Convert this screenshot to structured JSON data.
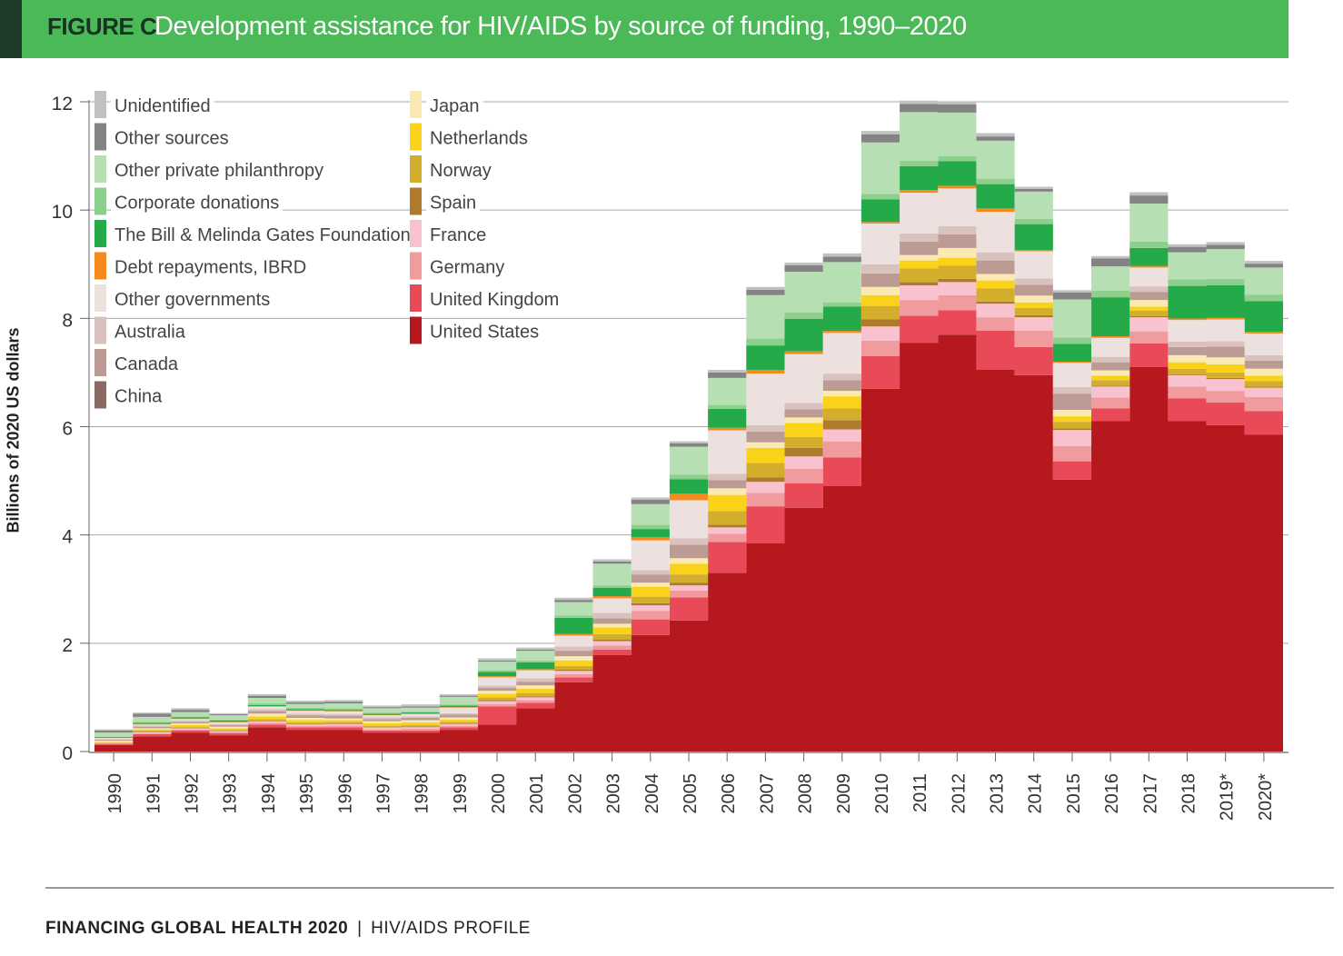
{
  "header": {
    "figure_label": "FIGURE C",
    "title": "Development assistance for HIV/AIDS by source of funding, 1990–2020"
  },
  "footer": {
    "publication": "FINANCING GLOBAL HEALTH 2020",
    "separator": "|",
    "section": "HIV/AIDS PROFILE"
  },
  "chart_data": {
    "type": "area",
    "subtype": "stacked-step",
    "title": "Development assistance for HIV/AIDS by source of funding, 1990–2020",
    "xlabel": "",
    "ylabel": "Billions of 2020 US dollars",
    "ylim": [
      0,
      12
    ],
    "yticks": [
      0,
      2,
      4,
      6,
      8,
      10,
      12
    ],
    "grid": true,
    "legend_position": "top-left",
    "categories": [
      "1990",
      "1991",
      "1992",
      "1993",
      "1994",
      "1995",
      "1996",
      "1997",
      "1998",
      "1999",
      "2000",
      "2001",
      "2002",
      "2003",
      "2004",
      "2005",
      "2006",
      "2007",
      "2008",
      "2009",
      "2010",
      "2011",
      "2012",
      "2013",
      "2014",
      "2015",
      "2016",
      "2017",
      "2018",
      "2019*",
      "2020*"
    ],
    "series": [
      {
        "name": "United States",
        "color": "#b5191d",
        "values": [
          0.12,
          0.28,
          0.35,
          0.3,
          0.45,
          0.4,
          0.4,
          0.35,
          0.35,
          0.4,
          0.5,
          0.8,
          1.28,
          1.78,
          2.15,
          2.42,
          3.3,
          3.85,
          4.5,
          4.9,
          6.7,
          7.55,
          7.7,
          7.05,
          6.95,
          5.02,
          6.1,
          7.1,
          6.1,
          6.03,
          5.85
        ]
      },
      {
        "name": "United Kingdom",
        "color": "#e84a57",
        "values": [
          0.02,
          0.04,
          0.04,
          0.04,
          0.05,
          0.05,
          0.05,
          0.04,
          0.04,
          0.05,
          0.33,
          0.1,
          0.09,
          0.1,
          0.29,
          0.43,
          0.57,
          0.68,
          0.45,
          0.53,
          0.6,
          0.5,
          0.45,
          0.72,
          0.52,
          0.34,
          0.24,
          0.44,
          0.42,
          0.42,
          0.44
        ]
      },
      {
        "name": "Germany",
        "color": "#f29b9f",
        "values": [
          0.01,
          0.02,
          0.02,
          0.02,
          0.03,
          0.02,
          0.03,
          0.02,
          0.03,
          0.03,
          0.05,
          0.05,
          0.06,
          0.08,
          0.16,
          0.12,
          0.15,
          0.25,
          0.27,
          0.3,
          0.29,
          0.29,
          0.28,
          0.25,
          0.3,
          0.28,
          0.2,
          0.22,
          0.22,
          0.21,
          0.26
        ]
      },
      {
        "name": "France",
        "color": "#f8c3cf",
        "values": [
          0.01,
          0.02,
          0.02,
          0.02,
          0.03,
          0.03,
          0.03,
          0.03,
          0.03,
          0.03,
          0.05,
          0.05,
          0.06,
          0.08,
          0.1,
          0.1,
          0.12,
          0.2,
          0.23,
          0.22,
          0.26,
          0.27,
          0.24,
          0.25,
          0.25,
          0.3,
          0.2,
          0.26,
          0.21,
          0.22,
          0.17
        ]
      },
      {
        "name": "Spain",
        "color": "#b07a2c",
        "values": [
          0,
          0.01,
          0.01,
          0.01,
          0.01,
          0.01,
          0.01,
          0.01,
          0.01,
          0.01,
          0.02,
          0.02,
          0.02,
          0.03,
          0.04,
          0.05,
          0.05,
          0.08,
          0.16,
          0.17,
          0.13,
          0.06,
          0.06,
          0.04,
          0.04,
          0.03,
          0.02,
          0.02,
          0.02,
          0.02,
          0.02
        ]
      },
      {
        "name": "Norway",
        "color": "#d3ae2d",
        "values": [
          0.01,
          0.02,
          0.02,
          0.02,
          0.03,
          0.03,
          0.03,
          0.03,
          0.03,
          0.03,
          0.05,
          0.06,
          0.07,
          0.1,
          0.12,
          0.15,
          0.25,
          0.27,
          0.2,
          0.22,
          0.25,
          0.25,
          0.24,
          0.24,
          0.13,
          0.12,
          0.1,
          0.1,
          0.1,
          0.1,
          0.1
        ]
      },
      {
        "name": "Netherlands",
        "color": "#fbd21a",
        "values": [
          0.01,
          0.02,
          0.03,
          0.02,
          0.05,
          0.04,
          0.03,
          0.04,
          0.05,
          0.04,
          0.07,
          0.08,
          0.1,
          0.12,
          0.18,
          0.2,
          0.3,
          0.28,
          0.26,
          0.22,
          0.2,
          0.15,
          0.15,
          0.15,
          0.1,
          0.1,
          0.08,
          0.08,
          0.12,
          0.15,
          0.1
        ]
      },
      {
        "name": "Japan",
        "color": "#fae9b0",
        "values": [
          0.02,
          0.02,
          0.03,
          0.03,
          0.05,
          0.04,
          0.03,
          0.04,
          0.04,
          0.04,
          0.05,
          0.06,
          0.08,
          0.07,
          0.08,
          0.1,
          0.12,
          0.1,
          0.1,
          0.1,
          0.15,
          0.1,
          0.18,
          0.12,
          0.13,
          0.12,
          0.1,
          0.12,
          0.13,
          0.13,
          0.13
        ]
      },
      {
        "name": "China",
        "color": "#8c6a64",
        "values": [
          0,
          0,
          0,
          0,
          0,
          0,
          0,
          0,
          0,
          0,
          0,
          0,
          0,
          0,
          0,
          0,
          0,
          0,
          0,
          0,
          0,
          0,
          0,
          0,
          0,
          0,
          0,
          0,
          0,
          0,
          0
        ]
      },
      {
        "name": "Canada",
        "color": "#bc9b95",
        "values": [
          0.02,
          0.03,
          0.03,
          0.03,
          0.05,
          0.05,
          0.05,
          0.04,
          0.04,
          0.05,
          0.06,
          0.07,
          0.1,
          0.1,
          0.15,
          0.25,
          0.15,
          0.2,
          0.15,
          0.2,
          0.25,
          0.25,
          0.25,
          0.25,
          0.2,
          0.3,
          0.15,
          0.15,
          0.15,
          0.2,
          0.15
        ]
      },
      {
        "name": "Australia",
        "color": "#d9c2be",
        "values": [
          0.01,
          0.02,
          0.02,
          0.02,
          0.03,
          0.03,
          0.03,
          0.03,
          0.03,
          0.03,
          0.04,
          0.06,
          0.08,
          0.1,
          0.08,
          0.12,
          0.12,
          0.12,
          0.12,
          0.12,
          0.17,
          0.15,
          0.15,
          0.15,
          0.12,
          0.12,
          0.1,
          0.1,
          0.1,
          0.1,
          0.1
        ]
      },
      {
        "name": "Other governments",
        "color": "#ece1df",
        "values": [
          0.02,
          0.02,
          0.03,
          0.03,
          0.05,
          0.05,
          0.05,
          0.04,
          0.04,
          0.1,
          0.15,
          0.15,
          0.2,
          0.27,
          0.55,
          0.7,
          0.8,
          0.95,
          0.9,
          0.75,
          0.75,
          0.75,
          0.7,
          0.75,
          0.5,
          0.45,
          0.35,
          0.35,
          0.4,
          0.4,
          0.4
        ]
      },
      {
        "name": "Debt repayments, IBRD",
        "color": "#f58a1f",
        "values": [
          0.01,
          0.01,
          0.01,
          0.01,
          0.01,
          0.01,
          0.01,
          0.01,
          0.01,
          0.01,
          0.02,
          0.02,
          0.03,
          0.04,
          0.06,
          0.12,
          0.05,
          0.07,
          0.05,
          0.04,
          0.03,
          0.05,
          0.05,
          0.06,
          0.02,
          0.02,
          0.03,
          0.03,
          0.03,
          0.03,
          0.03
        ]
      },
      {
        "name": "The Bill & Melinda Gates Foundation",
        "color": "#25aa4a",
        "values": [
          0.01,
          0.02,
          0.02,
          0.02,
          0.02,
          0.02,
          0.02,
          0.02,
          0.02,
          0.03,
          0.08,
          0.13,
          0.3,
          0.15,
          0.15,
          0.27,
          0.35,
          0.45,
          0.6,
          0.45,
          0.42,
          0.44,
          0.45,
          0.45,
          0.48,
          0.33,
          0.72,
          0.33,
          0.6,
          0.6,
          0.57
        ]
      },
      {
        "name": "Corporate donations",
        "color": "#8dd08c",
        "values": [
          0.01,
          0.02,
          0.02,
          0.02,
          0.03,
          0.03,
          0.03,
          0.02,
          0.02,
          0.02,
          0.03,
          0.03,
          0.04,
          0.05,
          0.08,
          0.08,
          0.07,
          0.13,
          0.12,
          0.07,
          0.1,
          0.1,
          0.1,
          0.1,
          0.1,
          0.12,
          0.12,
          0.12,
          0.12,
          0.12,
          0.12
        ]
      },
      {
        "name": "Other private philanthropy",
        "color": "#b6e0b3",
        "values": [
          0.07,
          0.09,
          0.08,
          0.08,
          0.1,
          0.07,
          0.09,
          0.08,
          0.07,
          0.14,
          0.16,
          0.18,
          0.25,
          0.4,
          0.38,
          0.52,
          0.5,
          0.8,
          0.75,
          0.75,
          0.95,
          0.9,
          0.8,
          0.7,
          0.5,
          0.7,
          0.45,
          0.7,
          0.5,
          0.55,
          0.5
        ]
      },
      {
        "name": "Other sources",
        "color": "#848282",
        "values": [
          0.04,
          0.06,
          0.04,
          0.02,
          0.04,
          0.03,
          0.03,
          0.02,
          0.02,
          0.02,
          0.02,
          0.02,
          0.04,
          0.04,
          0.08,
          0.06,
          0.1,
          0.1,
          0.12,
          0.1,
          0.15,
          0.15,
          0.15,
          0.08,
          0.05,
          0.13,
          0.15,
          0.15,
          0.1,
          0.08,
          0.07
        ]
      },
      {
        "name": "Unidentified",
        "color": "#c1c1c1",
        "values": [
          0.02,
          0.02,
          0.03,
          0.02,
          0.03,
          0.03,
          0.03,
          0.03,
          0.04,
          0.03,
          0.04,
          0.04,
          0.04,
          0.04,
          0.04,
          0.04,
          0.05,
          0.05,
          0.05,
          0.06,
          0.06,
          0.06,
          0.06,
          0.06,
          0.04,
          0.04,
          0.04,
          0.06,
          0.05,
          0.05,
          0.05
        ]
      }
    ],
    "legend_columns": [
      [
        "Unidentified",
        "Other sources",
        "Other private philanthropy",
        "Corporate donations",
        "The Bill & Melinda Gates Foundation",
        "Debt repayments, IBRD",
        "Other governments",
        "Australia",
        "Canada",
        "China"
      ],
      [
        "Japan",
        "Netherlands",
        "Norway",
        "Spain",
        "France",
        "Germany",
        "United Kingdom",
        "United States"
      ]
    ]
  }
}
